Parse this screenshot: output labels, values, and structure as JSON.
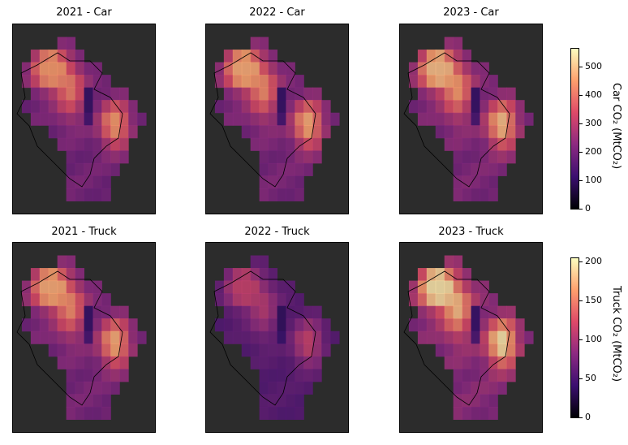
{
  "chart_data": [
    {
      "type": "heatmap",
      "title": "2021 - Car",
      "year": "2021",
      "vehicle": "Car",
      "intensity": 0.8
    },
    {
      "type": "heatmap",
      "title": "2022 - Car",
      "year": "2022",
      "vehicle": "Car",
      "intensity": 0.85
    },
    {
      "type": "heatmap",
      "title": "2023 - Car",
      "year": "2023",
      "vehicle": "Car",
      "intensity": 0.9
    },
    {
      "type": "heatmap",
      "title": "2021 - Truck",
      "year": "2021",
      "vehicle": "Truck",
      "intensity": 0.85
    },
    {
      "type": "heatmap",
      "title": "2022 - Truck",
      "year": "2022",
      "vehicle": "Truck",
      "intensity": 0.5
    },
    {
      "type": "heatmap",
      "title": "2023 - Truck",
      "year": "2023",
      "vehicle": "Truck",
      "intensity": 1.0
    }
  ],
  "colorbars": {
    "car": {
      "label": "Car CO₂ (MtCO₂)",
      "ticks": [
        "500",
        "400",
        "300",
        "200",
        "100",
        "0"
      ],
      "range": [
        0,
        575
      ]
    },
    "truck": {
      "label": "Truck CO₂ (MtCO₂)",
      "ticks": [
        "200",
        "150",
        "100",
        "50",
        "0"
      ],
      "range": [
        0,
        205
      ]
    },
    "colormap": "magma"
  }
}
